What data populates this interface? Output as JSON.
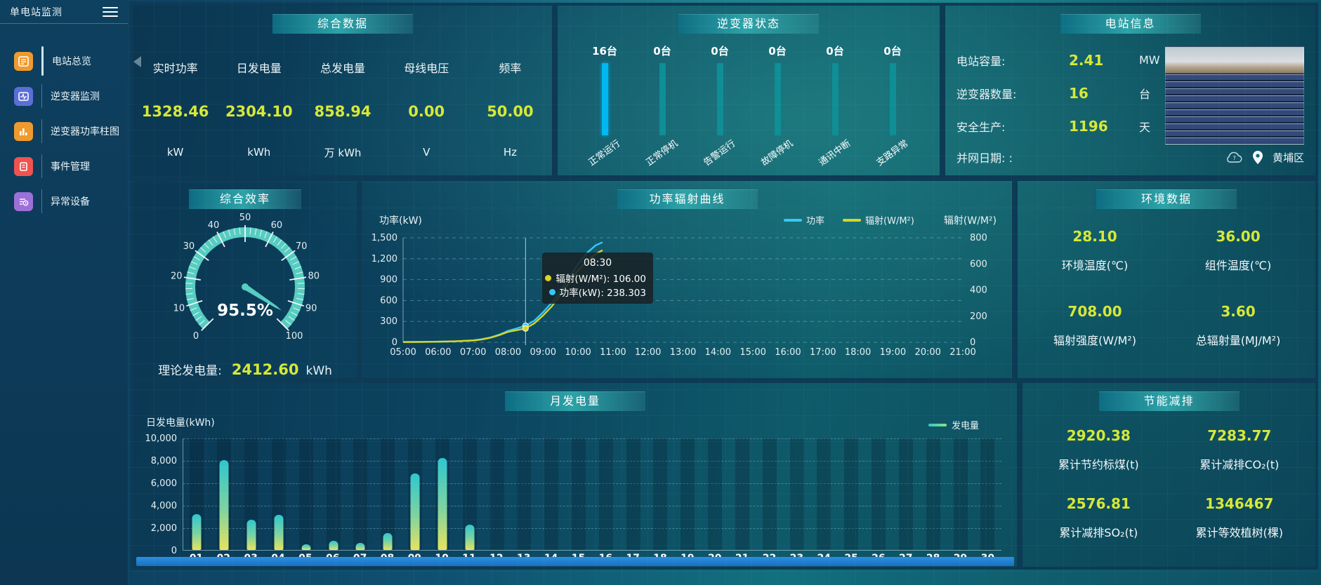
{
  "app": {
    "title": "单电站监测"
  },
  "sidebar": {
    "items": [
      {
        "label": "电站总览"
      },
      {
        "label": "逆变器监测"
      },
      {
        "label": "逆变器功率柱图"
      },
      {
        "label": "事件管理"
      },
      {
        "label": "异常设备"
      }
    ]
  },
  "panels": {
    "summary": {
      "title": "综合数据",
      "metrics": [
        {
          "label": "实时功率",
          "value": "1328.46",
          "unit": "kW"
        },
        {
          "label": "日发电量",
          "value": "2304.10",
          "unit": "kWh"
        },
        {
          "label": "总发电量",
          "value": "858.94",
          "unit": "万 kWh"
        },
        {
          "label": "母线电压",
          "value": "0.00",
          "unit": "V"
        },
        {
          "label": "频率",
          "value": "50.00",
          "unit": "Hz"
        }
      ]
    },
    "inverter_status": {
      "title": "逆变器状态",
      "items": [
        {
          "count": "16台",
          "label": "正常运行"
        },
        {
          "count": "0台",
          "label": "正常停机"
        },
        {
          "count": "0台",
          "label": "告警运行"
        },
        {
          "count": "0台",
          "label": "故障停机"
        },
        {
          "count": "0台",
          "label": "通讯中断"
        },
        {
          "count": "0台",
          "label": "支路异常"
        }
      ]
    },
    "station_info": {
      "title": "电站信息",
      "rows": [
        {
          "label": "电站容量:",
          "value": "2.41",
          "unit": "MW"
        },
        {
          "label": "逆变器数量:",
          "value": "16",
          "unit": "台"
        },
        {
          "label": "安全生产:",
          "value": "1196",
          "unit": "天"
        }
      ],
      "date_label": "并网日期: :",
      "location": "黄埔区"
    },
    "efficiency": {
      "title": "综合效率",
      "gauge_value": "95.5%",
      "theory_label": "理论发电量:",
      "theory_value": "2412.60",
      "theory_unit": "kWh"
    },
    "power_curve": {
      "title": "功率辐射曲线",
      "ylabel_left": "功率(kW)",
      "ylabel_right": "辐射(W/M²)",
      "legend": [
        {
          "label": "功率",
          "color": "#35c8f5"
        },
        {
          "label": "辐射(W/M²)",
          "color": "#d8d525"
        }
      ]
    },
    "environment": {
      "title": "环境数据",
      "cells": [
        {
          "value": "28.10",
          "label": "环境温度(℃)"
        },
        {
          "value": "36.00",
          "label": "组件温度(℃)"
        },
        {
          "value": "708.00",
          "label": "辐射强度(W/M²)"
        },
        {
          "value": "3.60",
          "label": "总辐射量(MJ/M²)"
        }
      ]
    },
    "monthly": {
      "title": "月发电量",
      "ylabel": "日发电量(kWh)",
      "legend": "发电量"
    },
    "saving": {
      "title": "节能减排",
      "cells": [
        {
          "value": "2920.38",
          "label": "累计节约标煤(t)"
        },
        {
          "value": "7283.77",
          "label": "累计减排CO₂(t)"
        },
        {
          "value": "2576.81",
          "label": "累计减排SO₂(t)"
        },
        {
          "value": "1346467",
          "label": "累计等效植树(棵)"
        }
      ]
    }
  },
  "gauge": {
    "min": 0,
    "max": 100,
    "value": 95.5,
    "ticks": [
      "0",
      "10",
      "20",
      "30",
      "40",
      "50",
      "60",
      "70",
      "80",
      "90",
      "100"
    ]
  },
  "chart_data": [
    {
      "id": "power_radiation",
      "type": "line",
      "title": "功率辐射曲线",
      "x_start_hour": 5,
      "x_end_hour": 21,
      "x_labels": [
        "05:00",
        "06:00",
        "07:00",
        "08:00",
        "09:00",
        "10:00",
        "11:00",
        "12:00",
        "13:00",
        "14:00",
        "15:00",
        "16:00",
        "17:00",
        "18:00",
        "19:00",
        "20:00",
        "21:00"
      ],
      "ylim_left": [
        0,
        1500
      ],
      "yticks_left": [
        "1,500",
        "1,200",
        "900",
        "600",
        "300",
        "0"
      ],
      "ylim_right": [
        0,
        800
      ],
      "yticks_right": [
        "800",
        "600",
        "400",
        "200",
        "0"
      ],
      "grid": true,
      "legend_position": "top-right",
      "series": [
        {
          "name": "功率",
          "axis": "left",
          "color": "#35c8f5",
          "hours": [
            5,
            5.5,
            6,
            6.5,
            7,
            7.25,
            7.5,
            7.75,
            8,
            8.25,
            8.5,
            8.75,
            9,
            9.25,
            9.5,
            9.75,
            10,
            10.25,
            10.5,
            10.7
          ],
          "values": [
            4,
            5,
            8,
            14,
            28,
            45,
            70,
            110,
            165,
            200,
            238.303,
            310,
            430,
            570,
            740,
            930,
            1120,
            1280,
            1390,
            1435
          ]
        },
        {
          "name": "辐射",
          "axis": "right",
          "color": "#d8d525",
          "hours": [
            5,
            5.5,
            6,
            6.5,
            7,
            7.25,
            7.5,
            7.75,
            8,
            8.25,
            8.5,
            8.75,
            9,
            9.25,
            9.5,
            9.75,
            10,
            10.25,
            10.5,
            10.7
          ],
          "values": [
            2,
            3,
            5,
            8,
            14,
            22,
            35,
            55,
            80,
            93,
            106,
            145,
            205,
            275,
            365,
            460,
            550,
            620,
            675,
            705
          ]
        }
      ],
      "crosshair_hour": 8.5,
      "tooltip": {
        "time": "08:30",
        "entries": [
          {
            "color": "#d8d525",
            "text": "辐射(W/M²): 106.00"
          },
          {
            "color": "#35c8f5",
            "text": "功率(kW): 238.303"
          }
        ]
      }
    },
    {
      "id": "daily_generation",
      "type": "bar",
      "title": "月发电量",
      "ylabel": "日发电量(kWh)",
      "legend": "发电量",
      "ylim": [
        0,
        10000
      ],
      "yticks": [
        "10,000",
        "8,000",
        "6,000",
        "4,000",
        "2,000",
        "0"
      ],
      "categories": [
        "01",
        "02",
        "03",
        "04",
        "05",
        "06",
        "07",
        "08",
        "09",
        "10",
        "11",
        "12",
        "13",
        "14",
        "15",
        "16",
        "17",
        "18",
        "19",
        "20",
        "21",
        "22",
        "23",
        "24",
        "25",
        "26",
        "27",
        "28",
        "29",
        "30"
      ],
      "values": [
        3200,
        8000,
        2700,
        3100,
        500,
        800,
        650,
        1500,
        6800,
        8200,
        2250,
        0,
        0,
        0,
        0,
        0,
        0,
        0,
        0,
        0,
        0,
        0,
        0,
        0,
        0,
        0,
        0,
        0,
        0,
        0
      ]
    }
  ]
}
